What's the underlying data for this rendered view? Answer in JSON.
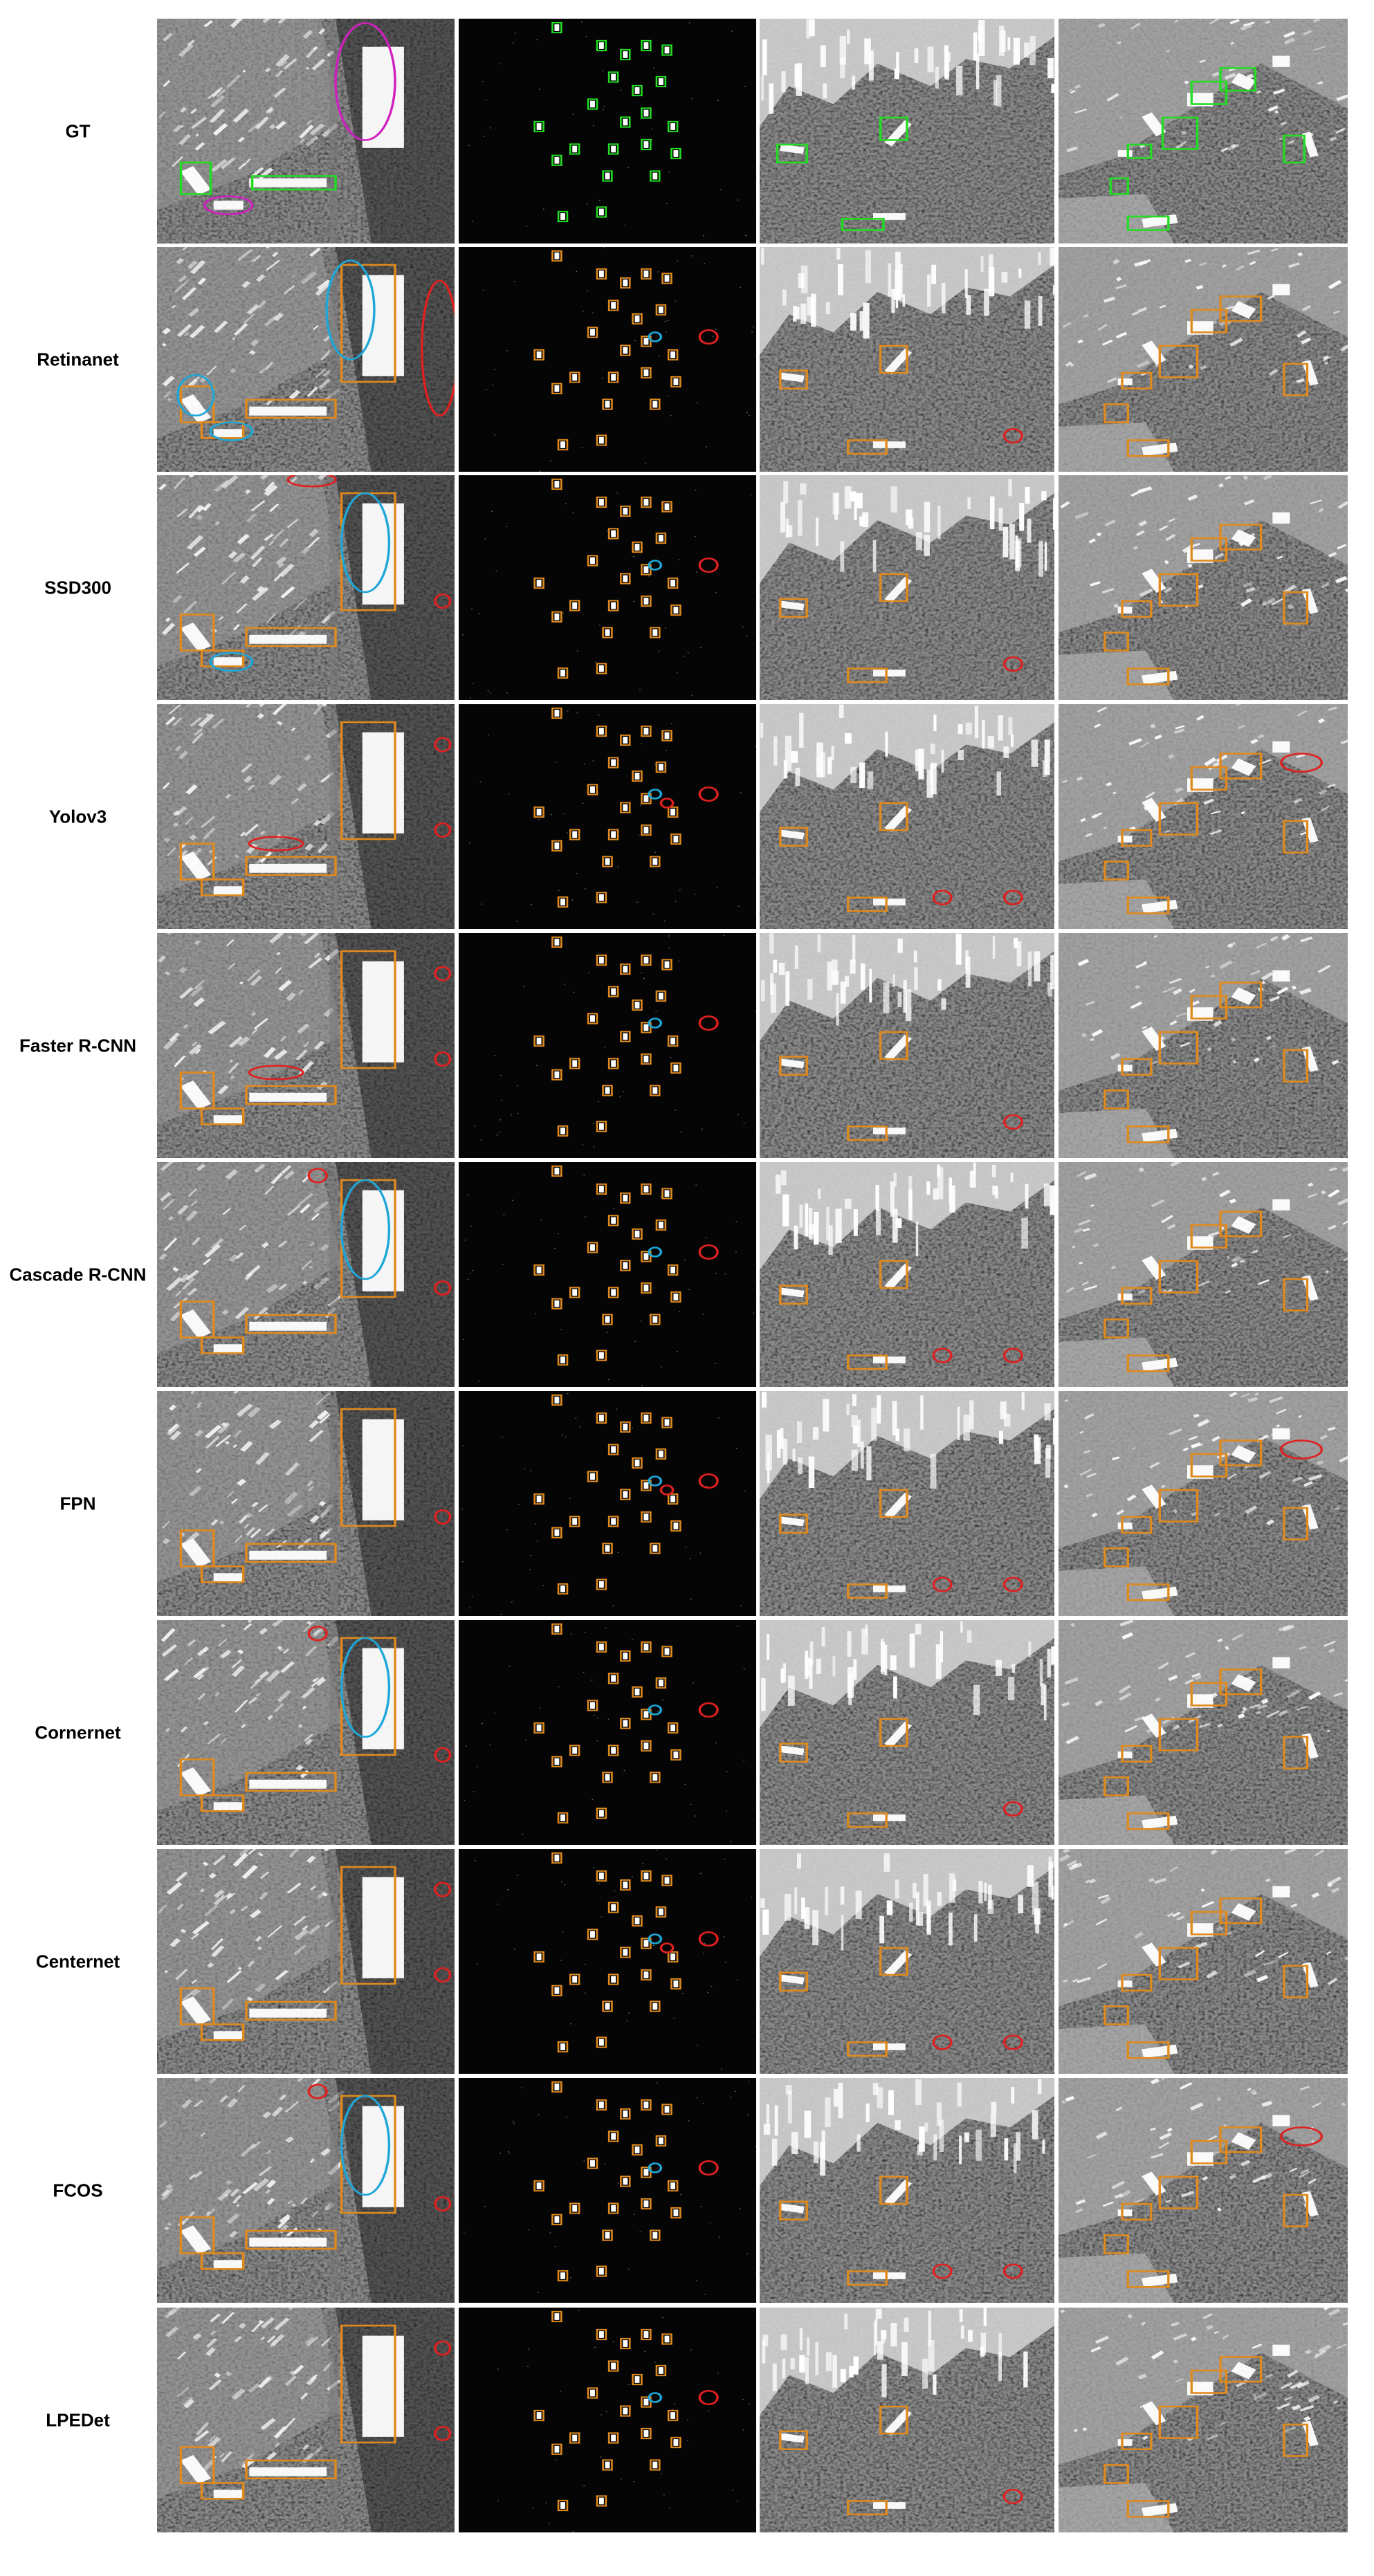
{
  "rows": [
    {
      "label": "GT"
    },
    {
      "label": "Retinanet"
    },
    {
      "label": "SSD300"
    },
    {
      "label": "Yolov3"
    },
    {
      "label": "Faster R-CNN"
    },
    {
      "label": "Cascade R-CNN"
    },
    {
      "label": "FPN"
    },
    {
      "label": "Cornernet"
    },
    {
      "label": "Centernet"
    },
    {
      "label": "FCOS"
    },
    {
      "label": "LPEDet"
    }
  ],
  "colors": {
    "ground_truth_box": "#22dd22",
    "detection_box": "#e08a1e",
    "false_alarm_circle": "#e02020",
    "missed_ellipse": "#1ea7d8",
    "gt_highlight_ellipse": "#d020c0"
  }
}
